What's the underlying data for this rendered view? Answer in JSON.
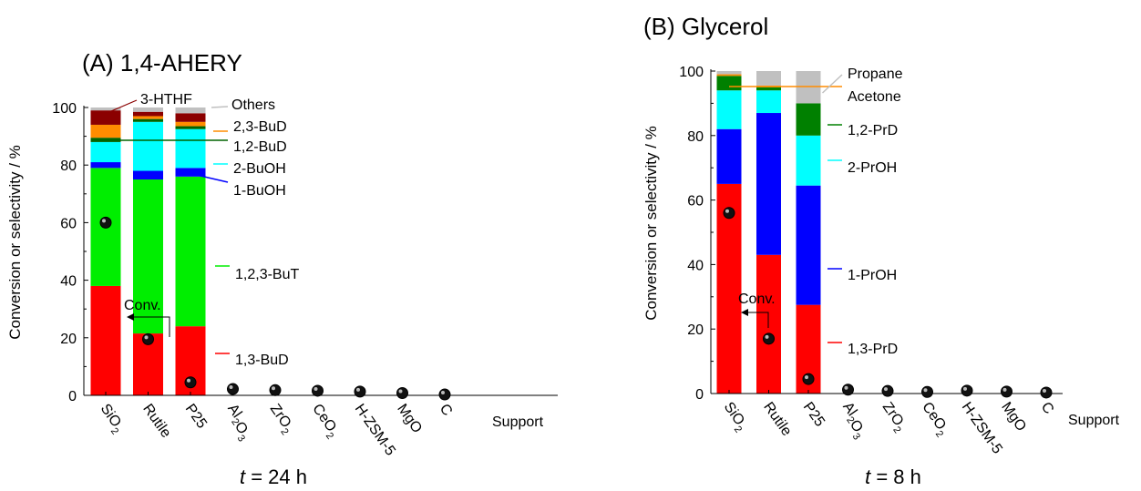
{
  "colors": {
    "1,3-BuD": "#ff0000",
    "1,2,3-BuT": "#00ee00",
    "1-BuOH": "#0000ff",
    "2-BuOH": "#00ffff",
    "1,2-BuD": "#006400",
    "2,3-BuD": "#ff8c00",
    "3-HTHF": "#8b0000",
    "Others": "#c0c0c0",
    "1,3-PrD": "#ff0000",
    "1-PrOH": "#0000ff",
    "2-PrOH": "#00ffff",
    "1,2-PrD": "#008000",
    "Acetone": "#ff8c00",
    "Propane": "#c0c0c0"
  },
  "chart_data": [
    {
      "type": "bar",
      "stacked": true,
      "title": "(A) 1,4-AHERY",
      "ylabel": "Conversion or selectivity / %",
      "xlabel_italic": "t",
      "xlabel_rest": " = 24 h",
      "ylim": [
        0,
        100
      ],
      "yticks": [
        0,
        20,
        40,
        60,
        80,
        100
      ],
      "categories": [
        "SiO",
        "Rutile",
        "P25",
        "Al O",
        "ZrO",
        "CeO",
        "H-ZSM-5",
        "MgO",
        "C"
      ],
      "category_subscripts": [
        "2",
        "",
        "",
        "2 3",
        "2",
        "2",
        "",
        "",
        ""
      ],
      "axis_end_label": "Support",
      "series": [
        {
          "name": "1,3-BuD",
          "values": [
            38,
            21.5,
            24,
            null,
            null,
            null,
            null,
            null,
            null
          ]
        },
        {
          "name": "1,2,3-BuT",
          "values": [
            41,
            53.5,
            52,
            null,
            null,
            null,
            null,
            null,
            null
          ]
        },
        {
          "name": "1-BuOH",
          "values": [
            2,
            3,
            3,
            null,
            null,
            null,
            null,
            null,
            null
          ]
        },
        {
          "name": "2-BuOH",
          "values": [
            7,
            17,
            13.5,
            null,
            null,
            null,
            null,
            null,
            null
          ]
        },
        {
          "name": "1,2-BuD",
          "values": [
            1.5,
            1,
            1,
            null,
            null,
            null,
            null,
            null,
            null
          ]
        },
        {
          "name": "2,3-BuD",
          "values": [
            4.5,
            1,
            1.5,
            null,
            null,
            null,
            null,
            null,
            null
          ]
        },
        {
          "name": "3-HTHF",
          "values": [
            5,
            1.5,
            3,
            null,
            null,
            null,
            null,
            null,
            null
          ]
        },
        {
          "name": "Others",
          "values": [
            1,
            1.5,
            2,
            null,
            null,
            null,
            null,
            null,
            null
          ]
        }
      ],
      "conversion": [
        60,
        19.5,
        4.5,
        2.2,
        1.8,
        1.6,
        1.3,
        0.8,
        0.3
      ],
      "conv_label": "Conv."
    },
    {
      "type": "bar",
      "stacked": true,
      "title": "(B) Glycerol",
      "ylabel": "Conversion or selectivity / %",
      "xlabel_italic": "t",
      "xlabel_rest": " = 8 h",
      "ylim": [
        0,
        100
      ],
      "yticks": [
        0,
        20,
        40,
        60,
        80,
        100
      ],
      "categories": [
        "SiO",
        "Rutile",
        "P25",
        "Al O",
        "ZrO",
        "CeO",
        "H-ZSM-5",
        "MgO",
        "C"
      ],
      "category_subscripts": [
        "2",
        "",
        "",
        "2 3",
        "2",
        "2",
        "",
        "",
        ""
      ],
      "axis_end_label": "Support",
      "series": [
        {
          "name": "1,3-PrD",
          "values": [
            65,
            43,
            27.5,
            null,
            null,
            null,
            null,
            null,
            null
          ]
        },
        {
          "name": "1-PrOH",
          "values": [
            17,
            44,
            37,
            null,
            null,
            null,
            null,
            null,
            null
          ]
        },
        {
          "name": "2-PrOH",
          "values": [
            12,
            7,
            15.5,
            null,
            null,
            null,
            null,
            null,
            null
          ]
        },
        {
          "name": "1,2-PrD",
          "values": [
            4.5,
            1,
            10,
            null,
            null,
            null,
            null,
            null,
            null
          ]
        },
        {
          "name": "Acetone",
          "values": [
            0.5,
            0.5,
            0,
            null,
            null,
            null,
            null,
            null,
            null
          ]
        },
        {
          "name": "Propane",
          "values": [
            1,
            4.5,
            10,
            null,
            null,
            null,
            null,
            null,
            null
          ]
        }
      ],
      "conversion": [
        56,
        17,
        4.5,
        1.2,
        0.8,
        0.5,
        0.9,
        0.6,
        0.3
      ],
      "conv_label": "Conv."
    }
  ]
}
